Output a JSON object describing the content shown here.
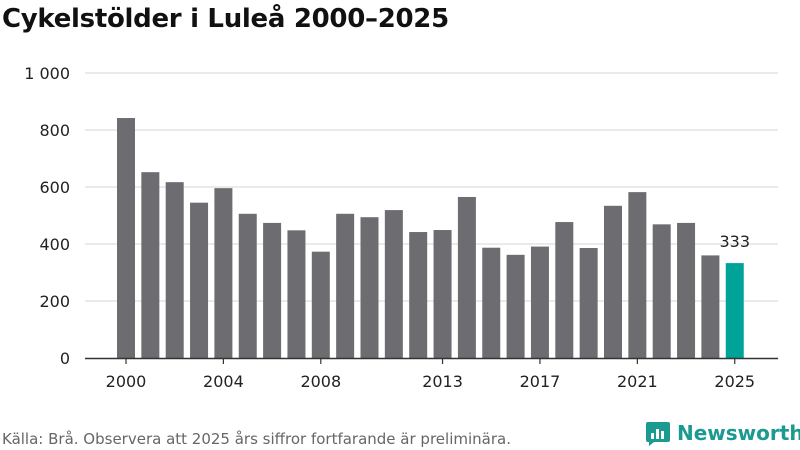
{
  "chart_data": {
    "type": "bar",
    "title": "Cykelstölder i Luleå 2000–2025",
    "categories": [
      "2000",
      "2001",
      "2002",
      "2003",
      "2004",
      "2005",
      "2006",
      "2007",
      "2008",
      "2009",
      "2010",
      "2011",
      "2012",
      "2013",
      "2014",
      "2015",
      "2016",
      "2017",
      "2018",
      "2019",
      "2020",
      "2021",
      "2022",
      "2023",
      "2024",
      "2025"
    ],
    "values": [
      842,
      652,
      617,
      545,
      596,
      506,
      474,
      448,
      373,
      506,
      494,
      519,
      442,
      449,
      565,
      387,
      362,
      391,
      477,
      386,
      534,
      582,
      469,
      474,
      360,
      333
    ],
    "x_tick_labels": [
      "2000",
      "2004",
      "2008",
      "2013",
      "2017",
      "2021",
      "2025"
    ],
    "y_tick_labels": [
      "0",
      "200",
      "400",
      "600",
      "800",
      "1 000"
    ],
    "y_ticks": [
      0,
      200,
      400,
      600,
      800,
      1000
    ],
    "ylim": [
      0,
      1000
    ],
    "xlabel": "",
    "ylabel": "",
    "grid": true,
    "highlight_index": 25,
    "highlight_label": "333",
    "colors": {
      "bar": "#6d6c71",
      "highlight": "#00a398",
      "grid": "#dddddd",
      "axis": "#333333"
    }
  },
  "footer": {
    "source": "Källa: Brå. Observera att 2025 års siffror fortfarande är preliminära.",
    "brand": "Newsworthy",
    "brand_icon": "newsworthy-logo-icon",
    "brand_color": "#1a9a90"
  }
}
